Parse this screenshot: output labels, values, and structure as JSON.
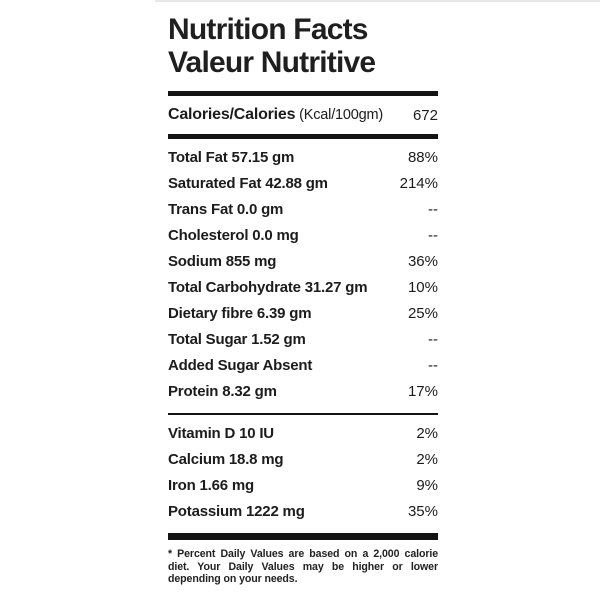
{
  "title": {
    "line1": "Nutrition Facts",
    "line2": "Valeur Nutritive"
  },
  "calories": {
    "label": "Calories/Calories",
    "unit": " (Kcal/100gm)",
    "value": "672"
  },
  "nutrients": [
    {
      "label": "Total Fat 57.15 gm",
      "dv": "88%"
    },
    {
      "label": "Saturated Fat 42.88 gm",
      "dv": "214%"
    },
    {
      "label": "Trans Fat 0.0 gm",
      "dv": "--"
    },
    {
      "label": "Cholesterol 0.0 mg",
      "dv": "--"
    },
    {
      "label": "Sodium 855 mg",
      "dv": "36%"
    },
    {
      "label": "Total Carbohydrate 31.27 gm",
      "dv": "10%"
    },
    {
      "label": "Dietary fibre 6.39 gm",
      "dv": "25%"
    },
    {
      "label": "Total Sugar 1.52 gm",
      "dv": "--"
    },
    {
      "label": "Added Sugar Absent",
      "dv": "--"
    },
    {
      "label": "Protein 8.32 gm",
      "dv": "17%"
    }
  ],
  "vitamins": [
    {
      "label": "Vitamin D 10 IU",
      "dv": "2%"
    },
    {
      "label": "Calcium 18.8 mg",
      "dv": "2%"
    },
    {
      "label": "Iron 1.66 mg",
      "dv": "9%"
    },
    {
      "label": "Potassium 1222 mg",
      "dv": "35%"
    }
  ],
  "footnote": "* Percent Daily Values are based on a 2,000 calorie diet. Your Daily Values may be higher or lower depending on your needs.",
  "colors": {
    "text": "#1c1c1c",
    "bar": "#141414",
    "page_bg": "#ffffff",
    "card_edge": "#e8e8e8"
  }
}
